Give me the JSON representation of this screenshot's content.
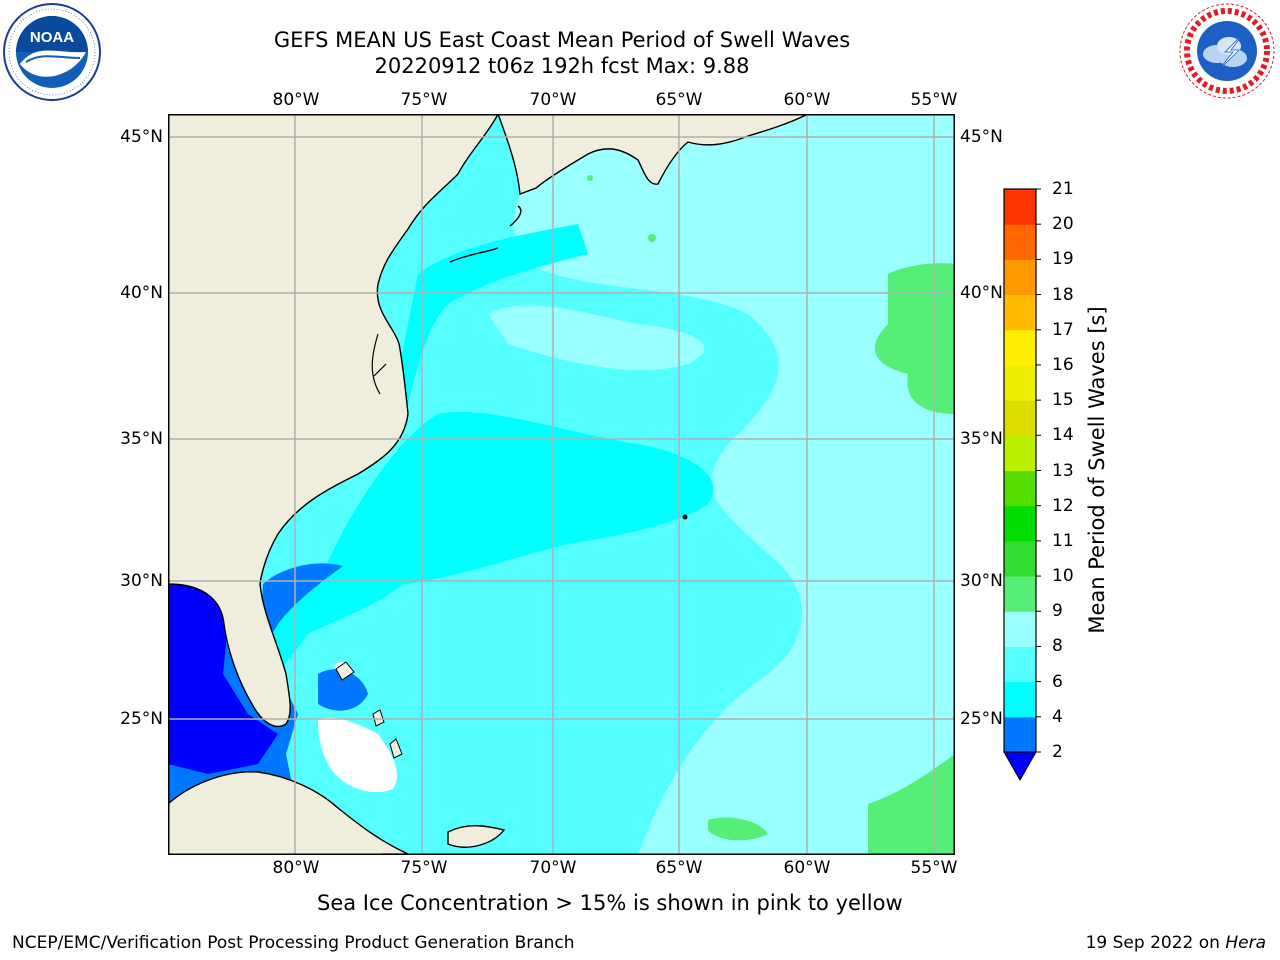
{
  "header": {
    "title_line1": "GEFS MEAN US East Coast Mean Period of Swell Waves",
    "title_line2": "20220912 t06z 192h fcst   Max: 9.88"
  },
  "logos": {
    "left": {
      "name": "NOAA",
      "text": "NOAA",
      "ring_text": "NATIONAL OCEANIC AND ATMOSPHERIC ADMINISTRATION · U.S. DEPARTMENT OF COMMERCE"
    },
    "right": {
      "name": "National Weather Service",
      "ring_text": "NATIONAL WEATHER SERVICE"
    }
  },
  "map": {
    "lon_labels": [
      "80°W",
      "75°W",
      "70°W",
      "65°W",
      "60°W",
      "55°W"
    ],
    "lat_labels": [
      "45°N",
      "40°N",
      "35°N",
      "30°N",
      "25°N"
    ],
    "colors": {
      "land": "#efeedd",
      "sea_white": "#ffffff",
      "gridline": "#b0b0b0",
      "coastline": "#000000"
    }
  },
  "colorbar": {
    "label": "Mean Period of Swell Waves [s]",
    "ticks": [
      "2",
      "4",
      "6",
      "8",
      "9",
      "10",
      "11",
      "12",
      "13",
      "14",
      "15",
      "16",
      "17",
      "18",
      "19",
      "20",
      "21"
    ],
    "under_color": "#0000ff",
    "band_colors": [
      "#0077ff",
      "#00ffff",
      "#55ffff",
      "#99ffff",
      "#55ee77",
      "#33dd33",
      "#00dd00",
      "#55dd00",
      "#bbee00",
      "#dddd00",
      "#eeee00",
      "#ffee00",
      "#ffbb00",
      "#ff9900",
      "#ff6600",
      "#ff3300",
      "#ff0000"
    ]
  },
  "chart_data": {
    "type": "heatmap",
    "title": "GEFS MEAN US East Coast Mean Period of Swell Waves",
    "subtitle": "20220912 t06z 192h fcst   Max: 9.88",
    "xlabel": "",
    "ylabel": "",
    "x_range": [
      "85°W",
      "54°W"
    ],
    "y_range": [
      "20°N",
      "46°N"
    ],
    "x_ticks": [
      "80°W",
      "75°W",
      "70°W",
      "65°W",
      "60°W",
      "55°W"
    ],
    "y_ticks": [
      "45°N",
      "40°N",
      "35°N",
      "30°N",
      "25°N"
    ],
    "colorbar_label": "Mean Period of Swell Waves [s]",
    "colorbar_range": [
      2,
      21
    ],
    "grid": true,
    "max_value": 9.88
  },
  "notes": {
    "ice": "Sea Ice Concentration > 15% is shown in pink to yellow"
  },
  "footer": {
    "left": "NCEP/EMC/Verification Post Processing Product Generation Branch",
    "date": "19 Sep 2022 on ",
    "host": "Hera"
  }
}
